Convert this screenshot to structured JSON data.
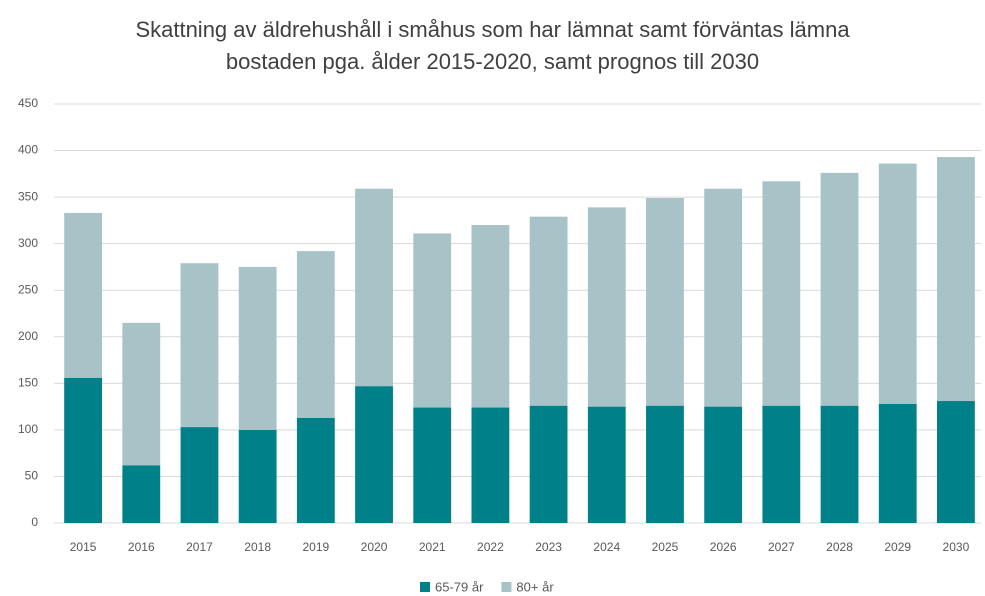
{
  "chart_data": {
    "type": "stacked_bar",
    "title": "Skattning av äldrehushåll i småhus som har lämnat samt förväntas lämna bostaden pga. ålder 2015-2020, samt prognos till 2030",
    "categories": [
      "2015",
      "2016",
      "2017",
      "2018",
      "2019",
      "2020",
      "2021",
      "2022",
      "2023",
      "2024",
      "2025",
      "2026",
      "2027",
      "2028",
      "2029",
      "2030"
    ],
    "series": [
      {
        "name": "65-79 år",
        "color": "#00818a",
        "values": [
          156,
          62,
          103,
          100,
          113,
          147,
          124,
          124,
          126,
          125,
          126,
          125,
          126,
          126,
          128,
          131
        ]
      },
      {
        "name": "80+ år",
        "color": "#a7c3c8",
        "values": [
          177,
          153,
          176,
          175,
          179,
          212,
          187,
          196,
          203,
          214,
          223,
          234,
          241,
          250,
          258,
          262
        ]
      }
    ],
    "ylim": [
      0,
      450
    ],
    "yticks": [
      0,
      50,
      100,
      150,
      200,
      250,
      300,
      350,
      400,
      450
    ],
    "grid": true,
    "legend": "bottom"
  }
}
